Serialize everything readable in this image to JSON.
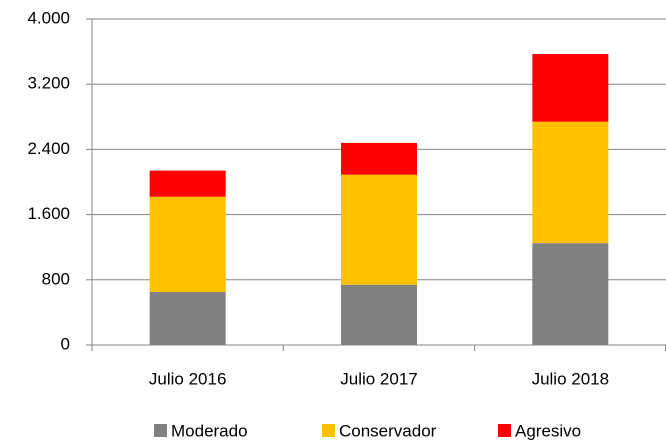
{
  "chart_data": {
    "type": "stacked_bar",
    "categories": [
      "Julio 2016",
      "Julio 2017",
      "Julio 2018"
    ],
    "series": [
      {
        "name": "Moderado",
        "color": "#808080",
        "values": [
          650,
          740,
          1250
        ]
      },
      {
        "name": "Conservador",
        "color": "#ffc000",
        "values": [
          1170,
          1350,
          1490
        ]
      },
      {
        "name": "Agresivo",
        "color": "#ff0000",
        "values": [
          320,
          390,
          830
        ]
      }
    ],
    "ylim": [
      0,
      4000
    ],
    "yticks": [
      0,
      800,
      {
        "value": 1600,
        "label": "1.600"
      },
      {
        "value": 2400,
        "label": "2.400"
      },
      {
        "value": 3200,
        "label": "3.200"
      },
      {
        "value": 4000,
        "label": "4.000"
      }
    ],
    "grid": true,
    "legend": "bottom"
  }
}
